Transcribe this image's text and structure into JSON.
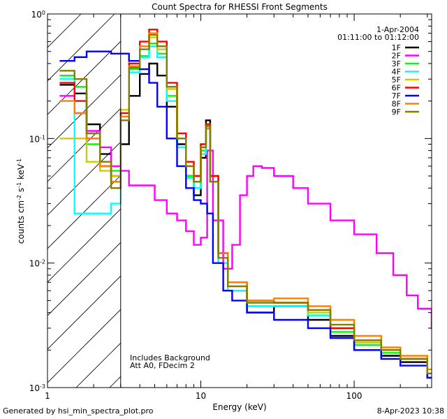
{
  "chart_data": {
    "type": "line",
    "title": "Count Spectra for RHESSI Front Segments",
    "xlabel": "Energy (keV)",
    "ylabel": "counts cm-2 s-1 keV-1",
    "xscale": "log",
    "yscale": "log",
    "xlim": [
      1.0,
      320
    ],
    "ylim": [
      0.001,
      1.0
    ],
    "x_ticks": [
      {
        "value": 1,
        "label": "1"
      },
      {
        "value": 10,
        "label": "10"
      },
      {
        "value": 100,
        "label": "100"
      }
    ],
    "y_ticks": [
      {
        "value": 1.0,
        "label": "10",
        "exp": "0"
      },
      {
        "value": 0.1,
        "label": "10",
        "exp": "-1"
      },
      {
        "value": 0.01,
        "label": "10",
        "exp": "-2"
      },
      {
        "value": 0.001,
        "label": "10",
        "exp": "-3"
      }
    ],
    "attenuated_region_max_kev": 3.0,
    "annotations": {
      "date": "1-Apr-2004",
      "time_range": "01:11:00 to 01:12:00",
      "background_note": "Includes Background",
      "attenuator_note": "Att A0, FDecim 2"
    },
    "series": [
      {
        "name": "1F",
        "color": "#000000",
        "points": [
          [
            1.2,
            0.27
          ],
          [
            1.5,
            0.23
          ],
          [
            1.8,
            0.13
          ],
          [
            2.2,
            0.075
          ],
          [
            2.6,
            0.05
          ],
          [
            3.0,
            0.09
          ],
          [
            3.4,
            0.22
          ],
          [
            4.0,
            0.33
          ],
          [
            4.6,
            0.4
          ],
          [
            5.2,
            0.32
          ],
          [
            6.0,
            0.18
          ],
          [
            7.0,
            0.09
          ],
          [
            8.0,
            0.05
          ],
          [
            9.0,
            0.035
          ],
          [
            10.0,
            0.07
          ],
          [
            10.8,
            0.14
          ],
          [
            11.5,
            0.05
          ],
          [
            13,
            0.012
          ],
          [
            15,
            0.006
          ],
          [
            20,
            0.004
          ],
          [
            30,
            0.0045
          ],
          [
            50,
            0.0035
          ],
          [
            70,
            0.0026
          ],
          [
            100,
            0.002
          ],
          [
            150,
            0.0018
          ],
          [
            200,
            0.0016
          ],
          [
            300,
            0.0012
          ]
        ]
      },
      {
        "name": "2F",
        "color": "#ff00ff",
        "points": [
          [
            1.2,
            0.22
          ],
          [
            1.5,
            0.16
          ],
          [
            1.8,
            0.115
          ],
          [
            2.2,
            0.085
          ],
          [
            2.6,
            0.06
          ],
          [
            3.0,
            0.055
          ],
          [
            3.4,
            0.042
          ],
          [
            4.0,
            0.042
          ],
          [
            5.0,
            0.032
          ],
          [
            6.0,
            0.025
          ],
          [
            7.0,
            0.022
          ],
          [
            8.0,
            0.018
          ],
          [
            9.0,
            0.014
          ],
          [
            10.0,
            0.016
          ],
          [
            11.0,
            0.08
          ],
          [
            12.0,
            0.022
          ],
          [
            14,
            0.009
          ],
          [
            16,
            0.014
          ],
          [
            18,
            0.035
          ],
          [
            20,
            0.05
          ],
          [
            22,
            0.06
          ],
          [
            25,
            0.058
          ],
          [
            30,
            0.05
          ],
          [
            40,
            0.04
          ],
          [
            50,
            0.03
          ],
          [
            70,
            0.022
          ],
          [
            100,
            0.017
          ],
          [
            140,
            0.012
          ],
          [
            180,
            0.008
          ],
          [
            220,
            0.0055
          ],
          [
            260,
            0.0043
          ],
          [
            320,
            0.003
          ]
        ]
      },
      {
        "name": "3F",
        "color": "#00ff00",
        "points": [
          [
            1.2,
            0.32
          ],
          [
            1.5,
            0.26
          ],
          [
            1.8,
            0.09
          ],
          [
            2.2,
            0.06
          ],
          [
            2.6,
            0.055
          ],
          [
            3.0,
            0.15
          ],
          [
            3.4,
            0.36
          ],
          [
            4.0,
            0.46
          ],
          [
            4.6,
            0.58
          ],
          [
            5.2,
            0.48
          ],
          [
            6.0,
            0.22
          ],
          [
            7.0,
            0.085
          ],
          [
            8.0,
            0.05
          ],
          [
            9.0,
            0.04
          ],
          [
            10.0,
            0.08
          ],
          [
            10.8,
            0.13
          ],
          [
            11.5,
            0.045
          ],
          [
            13,
            0.01
          ],
          [
            15,
            0.006
          ],
          [
            20,
            0.0045
          ],
          [
            30,
            0.0045
          ],
          [
            50,
            0.0038
          ],
          [
            70,
            0.0028
          ],
          [
            100,
            0.0022
          ],
          [
            150,
            0.0019
          ],
          [
            200,
            0.0017
          ],
          [
            300,
            0.0013
          ]
        ]
      },
      {
        "name": "4F",
        "color": "#00ffff",
        "points": [
          [
            1.2,
            0.3
          ],
          [
            1.5,
            0.025
          ],
          [
            1.8,
            0.025
          ],
          [
            2.2,
            0.025
          ],
          [
            2.6,
            0.03
          ],
          [
            3.0,
            0.15
          ],
          [
            3.4,
            0.34
          ],
          [
            4.0,
            0.45
          ],
          [
            4.6,
            0.55
          ],
          [
            5.2,
            0.45
          ],
          [
            6.0,
            0.2
          ],
          [
            7.0,
            0.085
          ],
          [
            8.0,
            0.048
          ],
          [
            9.0,
            0.04
          ],
          [
            10.0,
            0.075
          ],
          [
            10.8,
            0.12
          ],
          [
            11.5,
            0.045
          ],
          [
            13,
            0.01
          ],
          [
            15,
            0.006
          ],
          [
            20,
            0.0045
          ],
          [
            30,
            0.0045
          ],
          [
            50,
            0.0038
          ],
          [
            70,
            0.003
          ],
          [
            100,
            0.0023
          ],
          [
            150,
            0.002
          ],
          [
            200,
            0.0017
          ],
          [
            300,
            0.0013
          ]
        ]
      },
      {
        "name": "5F",
        "color": "#cccc00",
        "points": [
          [
            1.2,
            0.1
          ],
          [
            1.5,
            0.1
          ],
          [
            1.8,
            0.065
          ],
          [
            2.2,
            0.055
          ],
          [
            2.6,
            0.05
          ],
          [
            3.0,
            0.17
          ],
          [
            3.4,
            0.42
          ],
          [
            4.0,
            0.55
          ],
          [
            4.6,
            0.65
          ],
          [
            5.2,
            0.52
          ],
          [
            6.0,
            0.25
          ],
          [
            7.0,
            0.1
          ],
          [
            8.0,
            0.06
          ],
          [
            9.0,
            0.05
          ],
          [
            10.0,
            0.09
          ],
          [
            10.8,
            0.13
          ],
          [
            11.5,
            0.05
          ],
          [
            13,
            0.012
          ],
          [
            15,
            0.007
          ],
          [
            20,
            0.005
          ],
          [
            30,
            0.0048
          ],
          [
            50,
            0.004
          ],
          [
            70,
            0.003
          ],
          [
            100,
            0.0023
          ],
          [
            150,
            0.002
          ],
          [
            200,
            0.0017
          ],
          [
            300,
            0.0013
          ]
        ]
      },
      {
        "name": "6F",
        "color": "#ff0000",
        "points": [
          [
            1.2,
            0.28
          ],
          [
            1.5,
            0.2
          ],
          [
            1.8,
            0.1
          ],
          [
            2.2,
            0.06
          ],
          [
            2.6,
            0.045
          ],
          [
            3.0,
            0.16
          ],
          [
            3.4,
            0.4
          ],
          [
            4.0,
            0.6
          ],
          [
            4.6,
            0.75
          ],
          [
            5.2,
            0.6
          ],
          [
            6.0,
            0.28
          ],
          [
            7.0,
            0.11
          ],
          [
            8.0,
            0.065
          ],
          [
            9.0,
            0.05
          ],
          [
            10.0,
            0.09
          ],
          [
            10.8,
            0.13
          ],
          [
            11.5,
            0.05
          ],
          [
            13,
            0.012
          ],
          [
            15,
            0.007
          ],
          [
            20,
            0.005
          ],
          [
            30,
            0.0048
          ],
          [
            50,
            0.0042
          ],
          [
            70,
            0.003
          ],
          [
            100,
            0.0024
          ],
          [
            150,
            0.002
          ],
          [
            200,
            0.0017
          ],
          [
            300,
            0.0013
          ]
        ]
      },
      {
        "name": "7F",
        "color": "#0000ff",
        "points": [
          [
            1.2,
            0.42
          ],
          [
            1.5,
            0.45
          ],
          [
            1.8,
            0.5
          ],
          [
            2.2,
            0.5
          ],
          [
            2.6,
            0.48
          ],
          [
            3.0,
            0.48
          ],
          [
            3.4,
            0.42
          ],
          [
            4.0,
            0.36
          ],
          [
            4.6,
            0.28
          ],
          [
            5.2,
            0.18
          ],
          [
            6.0,
            0.1
          ],
          [
            7.0,
            0.06
          ],
          [
            8.0,
            0.04
          ],
          [
            9.0,
            0.032
          ],
          [
            10.0,
            0.03
          ],
          [
            11.0,
            0.025
          ],
          [
            12.0,
            0.01
          ],
          [
            14,
            0.006
          ],
          [
            16,
            0.005
          ],
          [
            20,
            0.004
          ],
          [
            30,
            0.0035
          ],
          [
            50,
            0.003
          ],
          [
            70,
            0.0025
          ],
          [
            100,
            0.002
          ],
          [
            150,
            0.0017
          ],
          [
            200,
            0.0015
          ],
          [
            300,
            0.0012
          ]
        ]
      },
      {
        "name": "8F",
        "color": "#ff8000",
        "points": [
          [
            1.2,
            0.2
          ],
          [
            1.5,
            0.16
          ],
          [
            1.8,
            0.1
          ],
          [
            2.2,
            0.06
          ],
          [
            2.6,
            0.045
          ],
          [
            3.0,
            0.15
          ],
          [
            3.4,
            0.38
          ],
          [
            4.0,
            0.55
          ],
          [
            4.6,
            0.7
          ],
          [
            5.2,
            0.55
          ],
          [
            6.0,
            0.26
          ],
          [
            7.0,
            0.1
          ],
          [
            8.0,
            0.06
          ],
          [
            9.0,
            0.045
          ],
          [
            10.0,
            0.085
          ],
          [
            10.8,
            0.12
          ],
          [
            11.5,
            0.045
          ],
          [
            13,
            0.012
          ],
          [
            15,
            0.007
          ],
          [
            20,
            0.005
          ],
          [
            30,
            0.0052
          ],
          [
            50,
            0.0045
          ],
          [
            70,
            0.0035
          ],
          [
            100,
            0.0026
          ],
          [
            150,
            0.0021
          ],
          [
            200,
            0.0018
          ],
          [
            300,
            0.0014
          ]
        ]
      },
      {
        "name": "9F",
        "color": "#808000",
        "points": [
          [
            1.2,
            0.35
          ],
          [
            1.5,
            0.3
          ],
          [
            1.8,
            0.11
          ],
          [
            2.2,
            0.065
          ],
          [
            2.6,
            0.04
          ],
          [
            3.0,
            0.14
          ],
          [
            3.4,
            0.37
          ],
          [
            4.0,
            0.52
          ],
          [
            4.6,
            0.68
          ],
          [
            5.2,
            0.55
          ],
          [
            6.0,
            0.26
          ],
          [
            7.0,
            0.1
          ],
          [
            8.0,
            0.06
          ],
          [
            9.0,
            0.045
          ],
          [
            10.0,
            0.085
          ],
          [
            10.8,
            0.125
          ],
          [
            11.5,
            0.045
          ],
          [
            13,
            0.011
          ],
          [
            15,
            0.0065
          ],
          [
            20,
            0.0048
          ],
          [
            30,
            0.0048
          ],
          [
            50,
            0.0042
          ],
          [
            70,
            0.0032
          ],
          [
            100,
            0.0024
          ],
          [
            150,
            0.002
          ],
          [
            200,
            0.0017
          ],
          [
            300,
            0.0013
          ]
        ]
      }
    ]
  },
  "footer": {
    "generated_by": "Generated by hsi_min_spectra_plot.pro",
    "timestamp": "8-Apr-2023 10:38"
  }
}
